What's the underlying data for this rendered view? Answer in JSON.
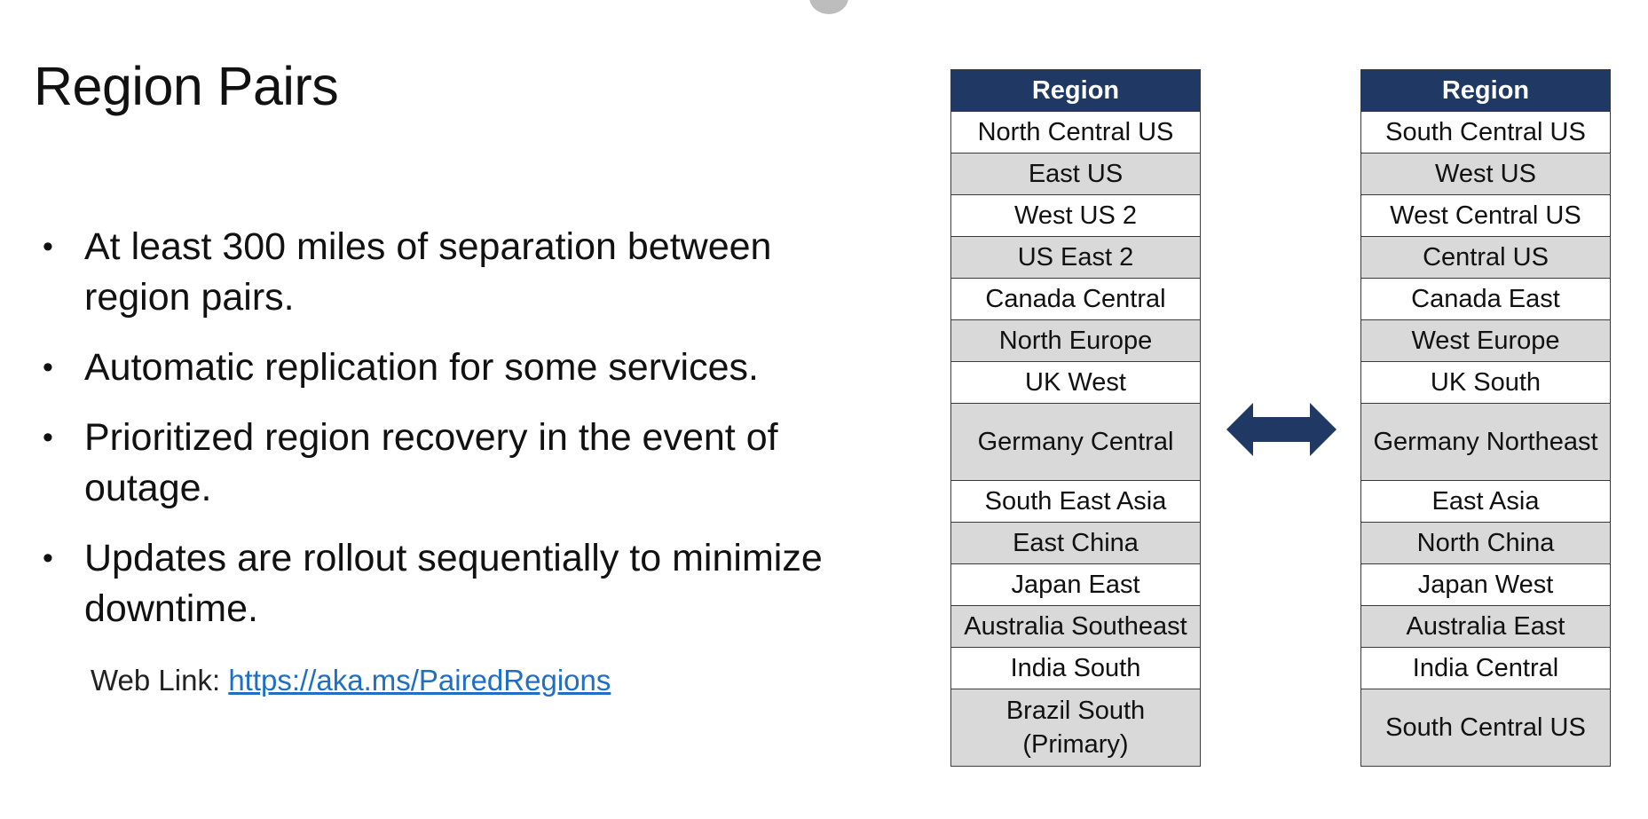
{
  "slide": {
    "title": "Region Pairs",
    "bullets": [
      "At least 300 miles of separation between region pairs.",
      "Automatic replication for some services.",
      "Prioritized region recovery in the event of outage.",
      "Updates are rollout sequentially to minimize downtime."
    ],
    "web_link": {
      "label": "Web Link: ",
      "url_text": "https://aka.ms/PairedRegions"
    }
  },
  "tables": {
    "left": {
      "header": "Region",
      "rows": [
        "North Central US",
        "East US",
        "West US 2",
        "US East 2",
        "Canada Central",
        "North Europe",
        "UK West",
        "Germany Central",
        "South East Asia",
        "East China",
        "Japan East",
        "Australia Southeast",
        "India South",
        "Brazil South (Primary)"
      ]
    },
    "right": {
      "header": "Region",
      "rows": [
        "South Central US",
        "West US",
        "West Central US",
        "Central US",
        "Canada East",
        "West Europe",
        "UK South",
        "Germany Northeast",
        "East Asia",
        "North China",
        "Japan West",
        "Australia East",
        "India Central",
        "South Central US"
      ]
    }
  },
  "icons": {
    "pair_arrow": "double-headed-arrow-icon"
  },
  "colors": {
    "header_bg": "#1f3864",
    "alt_row_bg": "#d9d9d9",
    "arrow": "#1f3864",
    "link": "#1f6fc5"
  }
}
